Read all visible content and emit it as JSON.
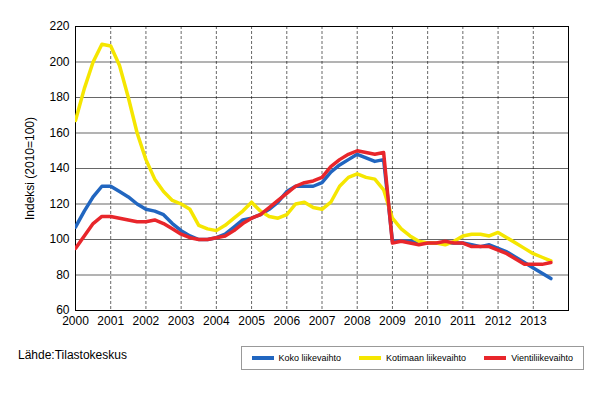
{
  "chart_data": {
    "type": "line",
    "y_label": "Indeksi (2010=100)",
    "source": "Lähde:Tilastokeskus",
    "x": [
      2000,
      2000.25,
      2000.5,
      2000.75,
      2001,
      2001.25,
      2001.5,
      2001.75,
      2002,
      2002.25,
      2002.5,
      2002.75,
      2003,
      2003.25,
      2003.5,
      2003.75,
      2004,
      2004.25,
      2004.5,
      2004.75,
      2005,
      2005.25,
      2005.5,
      2005.75,
      2006,
      2006.25,
      2006.5,
      2006.75,
      2007,
      2007.25,
      2007.5,
      2007.75,
      2008,
      2008.25,
      2008.5,
      2008.75,
      2009,
      2009.25,
      2009.5,
      2009.75,
      2010,
      2010.25,
      2010.5,
      2010.75,
      2011,
      2011.25,
      2011.5,
      2011.75,
      2012,
      2012.25,
      2012.5,
      2012.75,
      2013,
      2013.25,
      2013.5
    ],
    "xlim": [
      2000,
      2014
    ],
    "xticks": [
      2000,
      2001,
      2002,
      2003,
      2004,
      2005,
      2006,
      2007,
      2008,
      2009,
      2010,
      2011,
      2012,
      2013
    ],
    "ylim": [
      60,
      220
    ],
    "yticks": [
      60,
      80,
      100,
      120,
      140,
      160,
      180,
      200,
      220
    ],
    "grid": true,
    "legend": "bottom",
    "series": [
      {
        "name": "Koko liikevaihto",
        "color": "#2166c0",
        "values": [
          107,
          116,
          124,
          130,
          130,
          127,
          124,
          120,
          117,
          116,
          114,
          109,
          105,
          102,
          100,
          100,
          101,
          103,
          107,
          111,
          112,
          114,
          117,
          121,
          127,
          130,
          130,
          130,
          132,
          138,
          142,
          145,
          148,
          146,
          144,
          145,
          99,
          99,
          99,
          98,
          98,
          98,
          98,
          98,
          98,
          97,
          96,
          97,
          95,
          93,
          90,
          87,
          84,
          81,
          78
        ]
      },
      {
        "name": "Kotimaan liikevaihto",
        "color": "#f5e600",
        "values": [
          167,
          185,
          200,
          210,
          209,
          198,
          180,
          160,
          145,
          134,
          127,
          122,
          120,
          117,
          108,
          106,
          105,
          108,
          112,
          116,
          121,
          116,
          113,
          112,
          114,
          120,
          121,
          118,
          117,
          121,
          130,
          135,
          137,
          135,
          134,
          128,
          112,
          106,
          102,
          99,
          98,
          98,
          97,
          99,
          102,
          103,
          103,
          102,
          104,
          101,
          98,
          95,
          92,
          90,
          88
        ]
      },
      {
        "name": "Vientiliikevaihto",
        "color": "#e8262b",
        "values": [
          95,
          102,
          109,
          113,
          113,
          112,
          111,
          110,
          110,
          111,
          109,
          106,
          103,
          101,
          100,
          100,
          101,
          102,
          105,
          109,
          112,
          114,
          118,
          122,
          126,
          130,
          132,
          133,
          135,
          141,
          145,
          148,
          150,
          149,
          148,
          149,
          98,
          99,
          98,
          97,
          98,
          98,
          99,
          98,
          98,
          96,
          96,
          96,
          94,
          92,
          89,
          86,
          86,
          86,
          87
        ]
      }
    ]
  }
}
